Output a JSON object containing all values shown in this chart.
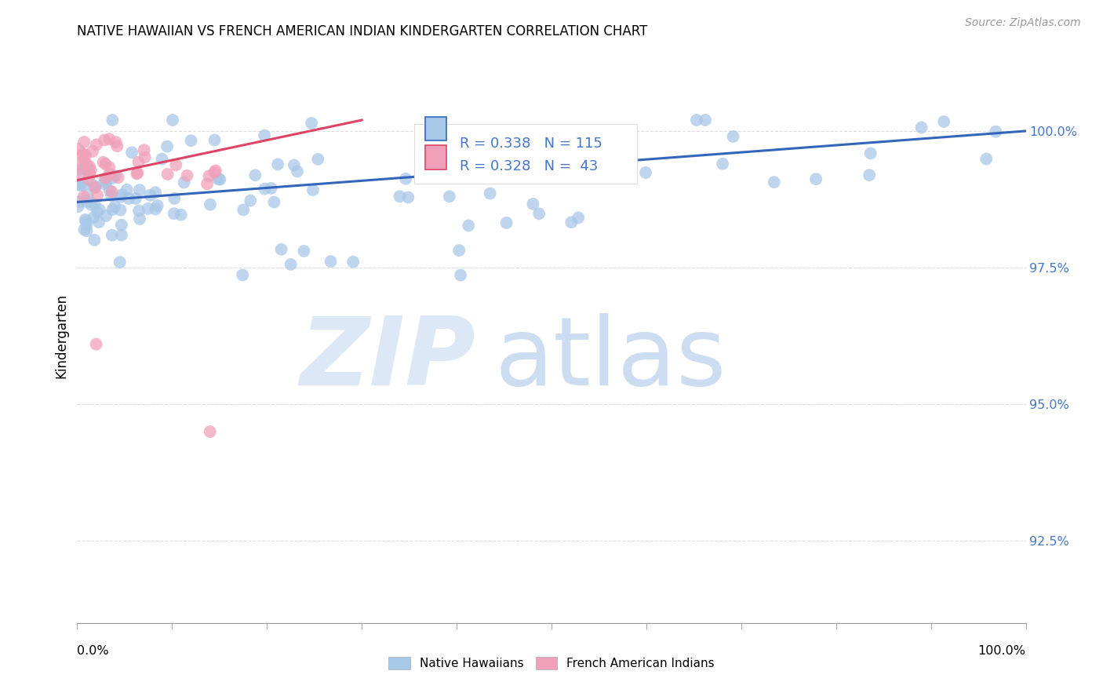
{
  "title": "NATIVE HAWAIIAN VS FRENCH AMERICAN INDIAN KINDERGARTEN CORRELATION CHART",
  "source": "Source: ZipAtlas.com",
  "ylabel": "Kindergarten",
  "ytick_labels": [
    "92.5%",
    "95.0%",
    "97.5%",
    "100.0%"
  ],
  "ytick_values": [
    0.925,
    0.95,
    0.975,
    1.0
  ],
  "xlim": [
    0.0,
    1.0
  ],
  "ylim": [
    0.91,
    1.015
  ],
  "blue_R": 0.338,
  "blue_N": 115,
  "pink_R": 0.328,
  "pink_N": 43,
  "blue_color": "#a8c8e8",
  "pink_color": "#f0a0b8",
  "blue_line_color": "#3366bb",
  "pink_line_color": "#dd4466",
  "legend_label_blue": "Native Hawaiians",
  "legend_label_pink": "French American Indians",
  "grid_color": "#dddddd",
  "stats_box_color": "#dddddd",
  "ytick_color": "#4477cc",
  "title_fontsize": 12,
  "source_fontsize": 10,
  "watermark_zip_color": "#dce8f5",
  "watermark_atlas_color": "#c8daf0"
}
